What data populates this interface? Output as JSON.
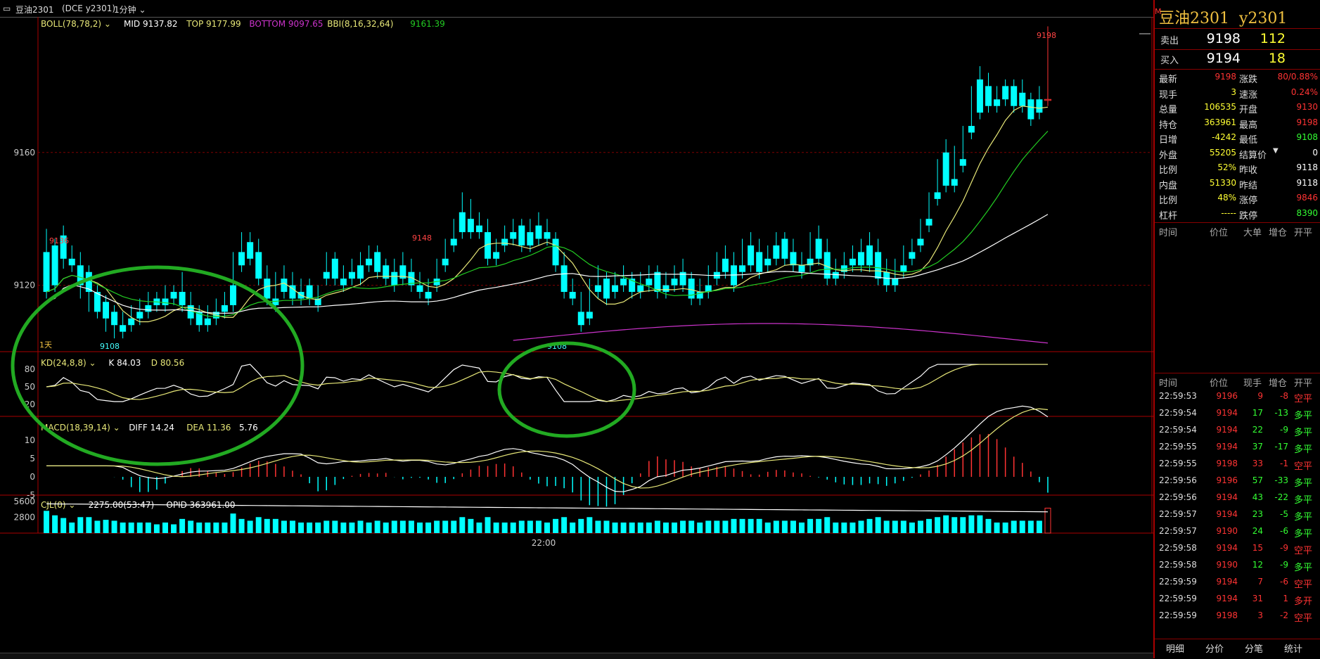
{
  "window": {
    "title": "豆油2301",
    "exchange": "(DCE y2301)",
    "period": "1分钟"
  },
  "indicators": {
    "boll_name": "BOLL(78,78,2)",
    "boll_mid": "MID 9137.82",
    "boll_top": "TOP 9177.99",
    "boll_bottom": "BOTTOM 9097.65",
    "bbi": "BBI(8,16,32,64)",
    "bbi_value": "9161.39",
    "kd_name": "KD(24,8,8)",
    "kd_k": "K 84.03",
    "kd_d": "D 80.56",
    "macd_name": "MACD(18,39,14)",
    "macd_diff": "DIFF 14.24",
    "macd_dea": "DEA 11.36",
    "macd_val": "5.76",
    "cjl_name": "CJL(0)",
    "cjl_val": "2275.00(53:47)",
    "cjl_opid": "OPID 363961.00"
  },
  "chart_labels": {
    "price_ticks": [
      "9160",
      "9120"
    ],
    "kd_ticks": [
      "80",
      "50",
      "20"
    ],
    "macd_ticks": [
      "10",
      "5",
      "0",
      "-5"
    ],
    "vol_ticks": [
      "5600",
      "2800"
    ],
    "time_label": "22:00",
    "day_label": "1天",
    "high_label_1": "9136",
    "high_label_2": "9148",
    "high_label_3": "9198",
    "low_label_1": "9108",
    "low_label_2": "9108"
  },
  "chart_data": {
    "type": "candlestick",
    "price_range": [
      9100,
      9200
    ],
    "candles": [
      [
        9130,
        9137,
        9118,
        9116
      ],
      [
        9132,
        9134,
        9120,
        9118
      ],
      [
        9135,
        9138,
        9128,
        9125
      ],
      [
        9128,
        9132,
        9126,
        9124
      ],
      [
        9126,
        9130,
        9120,
        9116
      ],
      [
        9124,
        9126,
        9118,
        9112
      ],
      [
        9118,
        9120,
        9112,
        9110
      ],
      [
        9115,
        9117,
        9110,
        9106
      ],
      [
        9112,
        9114,
        9108,
        9104
      ],
      [
        9108,
        9112,
        9106,
        9104
      ],
      [
        9110,
        9114,
        9108,
        9106
      ],
      [
        9112,
        9116,
        9110,
        9108
      ],
      [
        9114,
        9118,
        9112,
        9110
      ],
      [
        9116,
        9118,
        9114,
        9112
      ],
      [
        9116,
        9120,
        9114,
        9112
      ],
      [
        9118,
        9120,
        9116,
        9114
      ],
      [
        9118,
        9124,
        9114,
        9112
      ],
      [
        9114,
        9118,
        9110,
        9108
      ],
      [
        9112,
        9114,
        9108,
        9106
      ],
      [
        9110,
        9114,
        9108,
        9106
      ],
      [
        9112,
        9116,
        9110,
        9108
      ],
      [
        9114,
        9118,
        9112,
        9110
      ],
      [
        9120,
        9130,
        9114,
        9112
      ],
      [
        9130,
        9136,
        9126,
        9124
      ],
      [
        9133,
        9136,
        9128,
        9126
      ],
      [
        9130,
        9134,
        9122,
        9120
      ],
      [
        9122,
        9126,
        9116,
        9114
      ],
      [
        9116,
        9124,
        9114,
        9112
      ],
      [
        9122,
        9126,
        9118,
        9116
      ],
      [
        9120,
        9124,
        9116,
        9114
      ],
      [
        9118,
        9122,
        9116,
        9114
      ],
      [
        9120,
        9122,
        9116,
        9114
      ],
      [
        9116,
        9120,
        9114,
        9112
      ],
      [
        9124,
        9130,
        9122,
        9120
      ],
      [
        9128,
        9130,
        9122,
        9120
      ],
      [
        9122,
        9126,
        9120,
        9118
      ],
      [
        9124,
        9128,
        9122,
        9120
      ],
      [
        9126,
        9130,
        9122,
        9120
      ],
      [
        9128,
        9132,
        9126,
        9124
      ],
      [
        9130,
        9132,
        9124,
        9122
      ],
      [
        9126,
        9128,
        9122,
        9120
      ],
      [
        9124,
        9128,
        9120,
        9118
      ],
      [
        9126,
        9130,
        9122,
        9120
      ],
      [
        9124,
        9128,
        9120,
        9118
      ],
      [
        9120,
        9124,
        9118,
        9116
      ],
      [
        9118,
        9122,
        9116,
        9114
      ],
      [
        9122,
        9128,
        9120,
        9118
      ],
      [
        9128,
        9134,
        9126,
        9124
      ],
      [
        9134,
        9140,
        9132,
        9130
      ],
      [
        9142,
        9148,
        9136,
        9134
      ],
      [
        9140,
        9146,
        9136,
        9134
      ],
      [
        9138,
        9142,
        9136,
        9134
      ],
      [
        9136,
        9140,
        9128,
        9126
      ],
      [
        9130,
        9134,
        9128,
        9126
      ],
      [
        9134,
        9138,
        9132,
        9130
      ],
      [
        9136,
        9140,
        9134,
        9132
      ],
      [
        9138,
        9140,
        9132,
        9130
      ],
      [
        9136,
        9140,
        9132,
        9130
      ],
      [
        9138,
        9142,
        9134,
        9132
      ],
      [
        9136,
        9140,
        9134,
        9132
      ],
      [
        9134,
        9136,
        9126,
        9124
      ],
      [
        9126,
        9130,
        9118,
        9116
      ],
      [
        9118,
        9122,
        9116,
        9114
      ],
      [
        9112,
        9118,
        9108,
        9106
      ],
      [
        9112,
        9122,
        9110,
        9108
      ],
      [
        9120,
        9126,
        9118,
        9116
      ],
      [
        9122,
        9124,
        9116,
        9114
      ],
      [
        9120,
        9124,
        9118,
        9116
      ],
      [
        9122,
        9126,
        9120,
        9118
      ],
      [
        9122,
        9124,
        9118,
        9116
      ],
      [
        9120,
        9124,
        9118,
        9116
      ],
      [
        9122,
        9126,
        9120,
        9118
      ],
      [
        9124,
        9126,
        9118,
        9116
      ],
      [
        9120,
        9124,
        9118,
        9116
      ],
      [
        9122,
        9126,
        9120,
        9118
      ],
      [
        9124,
        9128,
        9120,
        9118
      ],
      [
        9122,
        9124,
        9116,
        9114
      ],
      [
        9118,
        9122,
        9116,
        9114
      ],
      [
        9120,
        9126,
        9118,
        9116
      ],
      [
        9124,
        9130,
        9122,
        9120
      ],
      [
        9128,
        9132,
        9124,
        9122
      ],
      [
        9126,
        9130,
        9120,
        9118
      ],
      [
        9126,
        9134,
        9124,
        9122
      ],
      [
        9132,
        9136,
        9126,
        9124
      ],
      [
        9130,
        9134,
        9124,
        9122
      ],
      [
        9128,
        9132,
        9126,
        9124
      ],
      [
        9132,
        9136,
        9128,
        9126
      ],
      [
        9134,
        9136,
        9128,
        9126
      ],
      [
        9130,
        9134,
        9126,
        9124
      ],
      [
        9126,
        9130,
        9124,
        9122
      ],
      [
        9128,
        9136,
        9126,
        9124
      ],
      [
        9134,
        9138,
        9128,
        9126
      ],
      [
        9130,
        9134,
        9122,
        9120
      ],
      [
        9124,
        9128,
        9122,
        9120
      ],
      [
        9126,
        9130,
        9124,
        9122
      ],
      [
        9128,
        9132,
        9126,
        9124
      ],
      [
        9130,
        9134,
        9126,
        9124
      ],
      [
        9132,
        9136,
        9126,
        9124
      ],
      [
        9130,
        9134,
        9122,
        9120
      ],
      [
        9124,
        9128,
        9120,
        9118
      ],
      [
        9122,
        9128,
        9120,
        9118
      ],
      [
        9126,
        9132,
        9124,
        9122
      ],
      [
        9130,
        9134,
        9128,
        9126
      ],
      [
        9134,
        9140,
        9132,
        9130
      ],
      [
        9140,
        9148,
        9138,
        9136
      ],
      [
        9148,
        9158,
        9146,
        9144
      ],
      [
        9160,
        9164,
        9150,
        9148
      ],
      [
        9152,
        9162,
        9150,
        9148
      ],
      [
        9158,
        9168,
        9156,
        9154
      ],
      [
        9168,
        9180,
        9166,
        9164
      ],
      [
        9182,
        9186,
        9172,
        9170
      ],
      [
        9180,
        9184,
        9174,
        9172
      ],
      [
        9176,
        9180,
        9174,
        9172
      ],
      [
        9180,
        9182,
        9176,
        9174
      ],
      [
        9180,
        9182,
        9174,
        9172
      ],
      [
        9178,
        9182,
        9174,
        9172
      ],
      [
        9176,
        9178,
        9170,
        9168
      ],
      [
        9176,
        9180,
        9172,
        9170
      ],
      [
        9176,
        9198,
        9176,
        9174
      ]
    ],
    "boll_mid_values": [
      9122,
      9121,
      9120,
      9120,
      9119,
      9119,
      9118,
      9118,
      9118,
      9118,
      9118,
      9119,
      9120,
      9120,
      9121,
      9122,
      9123,
      9124,
      9125,
      9126,
      9128,
      9130,
      9132,
      9134,
      9136,
      9138
    ],
    "kd_k": 84.03,
    "kd_d": 80.56,
    "macd_diff": 14.24,
    "macd_dea": 11.36
  },
  "quote_panel": {
    "symbol": "豆油2301",
    "code": "y2301",
    "sell_label": "卖出",
    "sell_price": "9198",
    "sell_vol": "112",
    "buy_label": "买入",
    "buy_price": "9194",
    "buy_vol": "18",
    "stats_left": [
      {
        "label": "最新",
        "value": "9198",
        "color": "red"
      },
      {
        "label": "现手",
        "value": "3",
        "color": "yellow"
      },
      {
        "label": "总量",
        "value": "106535",
        "color": "yellow"
      },
      {
        "label": "持仓",
        "value": "363961",
        "color": "yellow"
      },
      {
        "label": "日增",
        "value": "-4242",
        "color": "yellow"
      },
      {
        "label": "外盘",
        "value": "55205",
        "color": "yellow"
      },
      {
        "label": "比例",
        "value": "52%",
        "color": "yellow"
      },
      {
        "label": "内盘",
        "value": "51330",
        "color": "yellow"
      },
      {
        "label": "比例",
        "value": "48%",
        "color": "yellow"
      },
      {
        "label": "杠杆",
        "value": "-----",
        "color": "yellow"
      }
    ],
    "stats_right": [
      {
        "label": "涨跌",
        "value": "80/0.88%",
        "color": "red"
      },
      {
        "label": "速涨",
        "value": "0.24%",
        "color": "red"
      },
      {
        "label": "开盘",
        "value": "9130",
        "color": "red"
      },
      {
        "label": "最高",
        "value": "9198",
        "color": "red"
      },
      {
        "label": "最低",
        "value": "9108",
        "color": "green"
      },
      {
        "label": "结算价",
        "value": "0",
        "color": "white"
      },
      {
        "label": "昨收",
        "value": "9118",
        "color": "white"
      },
      {
        "label": "昨结",
        "value": "9118",
        "color": "white"
      },
      {
        "label": "涨停",
        "value": "9846",
        "color": "red"
      },
      {
        "label": "跌停",
        "value": "8390",
        "color": "green"
      }
    ],
    "big_orders_headers": [
      "时间",
      "价位",
      "大单",
      "增仓",
      "开平"
    ],
    "ticks_headers": [
      "时间",
      "价位",
      "现手",
      "增仓",
      "开平"
    ],
    "ticks": [
      {
        "time": "22:59:53",
        "price": "9196",
        "vol": "9",
        "vol_color": "red",
        "oi": "-8",
        "type": "空平",
        "type_color": "red"
      },
      {
        "time": "22:59:54",
        "price": "9194",
        "vol": "17",
        "vol_color": "green",
        "oi": "-13",
        "type": "多平",
        "type_color": "green"
      },
      {
        "time": "22:59:54",
        "price": "9194",
        "vol": "22",
        "vol_color": "green",
        "oi": "-9",
        "type": "多平",
        "type_color": "green"
      },
      {
        "time": "22:59:55",
        "price": "9194",
        "vol": "37",
        "vol_color": "green",
        "oi": "-17",
        "type": "多平",
        "type_color": "green"
      },
      {
        "time": "22:59:55",
        "price": "9198",
        "vol": "33",
        "vol_color": "red",
        "oi": "-1",
        "type": "空平",
        "type_color": "red"
      },
      {
        "time": "22:59:56",
        "price": "9196",
        "vol": "57",
        "vol_color": "green",
        "oi": "-33",
        "type": "多平",
        "type_color": "green"
      },
      {
        "time": "22:59:56",
        "price": "9194",
        "vol": "43",
        "vol_color": "green",
        "oi": "-22",
        "type": "多平",
        "type_color": "green"
      },
      {
        "time": "22:59:57",
        "price": "9194",
        "vol": "23",
        "vol_color": "green",
        "oi": "-5",
        "type": "多平",
        "type_color": "green"
      },
      {
        "time": "22:59:57",
        "price": "9190",
        "vol": "24",
        "vol_color": "green",
        "oi": "-6",
        "type": "多平",
        "type_color": "green"
      },
      {
        "time": "22:59:58",
        "price": "9194",
        "vol": "15",
        "vol_color": "red",
        "oi": "-9",
        "type": "空平",
        "type_color": "red"
      },
      {
        "time": "22:59:58",
        "price": "9190",
        "vol": "12",
        "vol_color": "green",
        "oi": "-9",
        "type": "多平",
        "type_color": "green"
      },
      {
        "time": "22:59:59",
        "price": "9194",
        "vol": "7",
        "vol_color": "red",
        "oi": "-6",
        "type": "空平",
        "type_color": "red"
      },
      {
        "time": "22:59:59",
        "price": "9194",
        "vol": "31",
        "vol_color": "red",
        "oi": "1",
        "type": "多开",
        "type_color": "red"
      },
      {
        "time": "22:59:59",
        "price": "9198",
        "vol": "3",
        "vol_color": "red",
        "oi": "-2",
        "type": "空平",
        "type_color": "red"
      }
    ],
    "bottom_tabs": [
      "明细",
      "分价",
      "分笔",
      "统计"
    ]
  },
  "colors": {
    "up": "#ff3333",
    "down": "#00ffff",
    "bg": "#000000",
    "grid": "#800000",
    "annotation": "#22aa22"
  }
}
